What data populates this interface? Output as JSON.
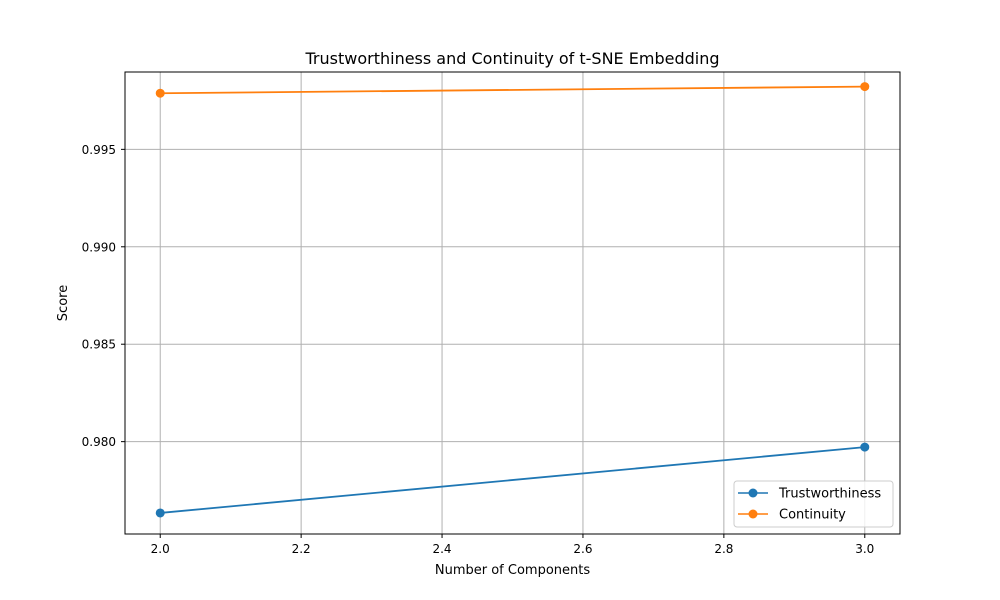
{
  "chart_data": {
    "type": "line",
    "title": "Trustworthiness and Continuity of t-SNE Embedding",
    "xlabel": "Number of Components",
    "ylabel": "Score",
    "x": [
      2,
      3
    ],
    "xlim": [
      1.95,
      3.05
    ],
    "ylim": [
      0.97526,
      0.99897
    ],
    "xticks": [
      2.0,
      2.2,
      2.4,
      2.6,
      2.8,
      3.0
    ],
    "xtick_labels": [
      "2.0",
      "2.2",
      "2.4",
      "2.6",
      "2.8",
      "3.0"
    ],
    "yticks": [
      0.98,
      0.985,
      0.99,
      0.995
    ],
    "ytick_labels": [
      "0.980",
      "0.985",
      "0.990",
      "0.995"
    ],
    "grid": true,
    "legend_position": "lower-right",
    "markers": "circle",
    "series": [
      {
        "name": "Trustworthiness",
        "values": [
          0.97634,
          0.97972
        ],
        "color": "#1f77b4"
      },
      {
        "name": "Continuity",
        "values": [
          0.99788,
          0.99822
        ],
        "color": "#ff7f0e"
      }
    ]
  }
}
